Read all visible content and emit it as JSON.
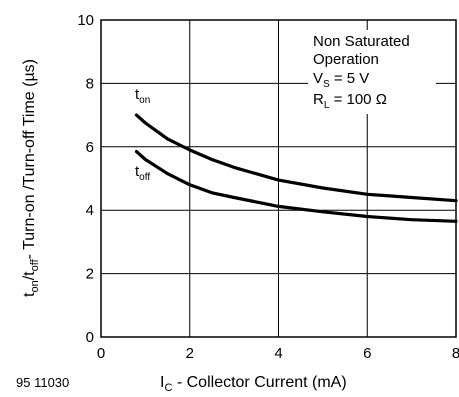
{
  "chart_data": {
    "type": "line",
    "figure_id": "95 11030",
    "xlabel": {
      "main": "I",
      "sub": "C",
      "rest": " - Collector Current (mA)"
    },
    "ylabel": [
      {
        "text": "t",
        "sub": false
      },
      {
        "text": "on",
        "sub": true
      },
      {
        "text": "/t",
        "sub": false
      },
      {
        "text": "off",
        "sub": true
      },
      {
        "text": "- Turn-on /Turn-off Time (µs)",
        "sub": false
      }
    ],
    "xlim": [
      0,
      8
    ],
    "ylim": [
      0,
      10
    ],
    "xticks": [
      "0",
      "2",
      "4",
      "6",
      "8"
    ],
    "yticks": [
      "0",
      "2",
      "4",
      "6",
      "8",
      "10"
    ],
    "grid": true,
    "annotation": {
      "line1": "Non Saturated",
      "line2": "Operation",
      "vs": {
        "main": "V",
        "sub": "S",
        "rest": " = 5 V"
      },
      "rl": {
        "main": "R",
        "sub": "L",
        "rest": " = 100 Ω"
      }
    },
    "series": [
      {
        "name": "t_on",
        "label": {
          "main": "t",
          "sub": "on"
        },
        "x": [
          0.8,
          1.0,
          1.5,
          2.0,
          2.5,
          3.0,
          4.0,
          5.0,
          6.0,
          7.0,
          8.0
        ],
        "y": [
          7.0,
          6.75,
          6.25,
          5.9,
          5.6,
          5.35,
          4.95,
          4.7,
          4.5,
          4.4,
          4.3
        ]
      },
      {
        "name": "t_off",
        "label": {
          "main": "t",
          "sub": "off"
        },
        "x": [
          0.8,
          1.0,
          1.5,
          2.0,
          2.5,
          3.0,
          4.0,
          5.0,
          6.0,
          7.0,
          8.0
        ],
        "y": [
          5.85,
          5.6,
          5.15,
          4.8,
          4.55,
          4.4,
          4.12,
          3.95,
          3.8,
          3.7,
          3.65
        ]
      }
    ]
  }
}
